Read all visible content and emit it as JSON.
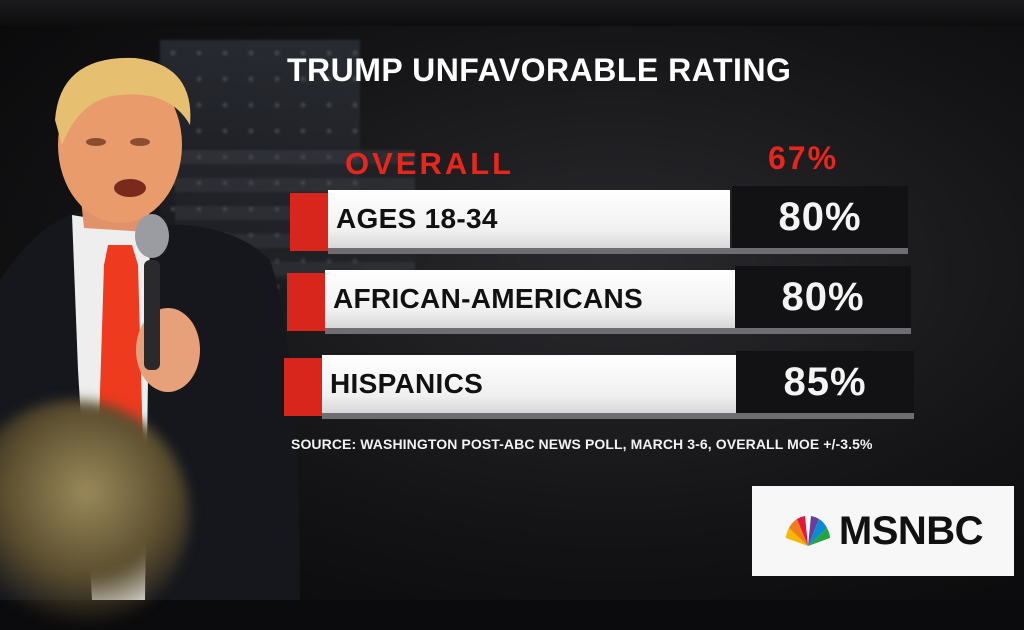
{
  "chart_data": {
    "type": "bar",
    "title": "TRUMP UNFAVORABLE RATING",
    "overall": {
      "label": "OVERALL",
      "value": 67,
      "display": "67%"
    },
    "categories": [
      "AGES 18-34",
      "AFRICAN-AMERICANS",
      "HISPANICS"
    ],
    "values": [
      80,
      80,
      85
    ],
    "value_labels": [
      "80%",
      "80%",
      "85%"
    ],
    "unit": "%",
    "source": "SOURCE: WASHINGTON POST-ABC NEWS POLL, MARCH 3-6, OVERALL MOE +/-3.5%"
  },
  "logo": {
    "text": "MSNBC"
  },
  "colors": {
    "accent_red": "#e8261c",
    "bar_red": "#d9261c",
    "label_bg": "#ffffff",
    "value_bg": "#121214",
    "text_dark": "#111111",
    "text_light": "#f4f4f4"
  }
}
